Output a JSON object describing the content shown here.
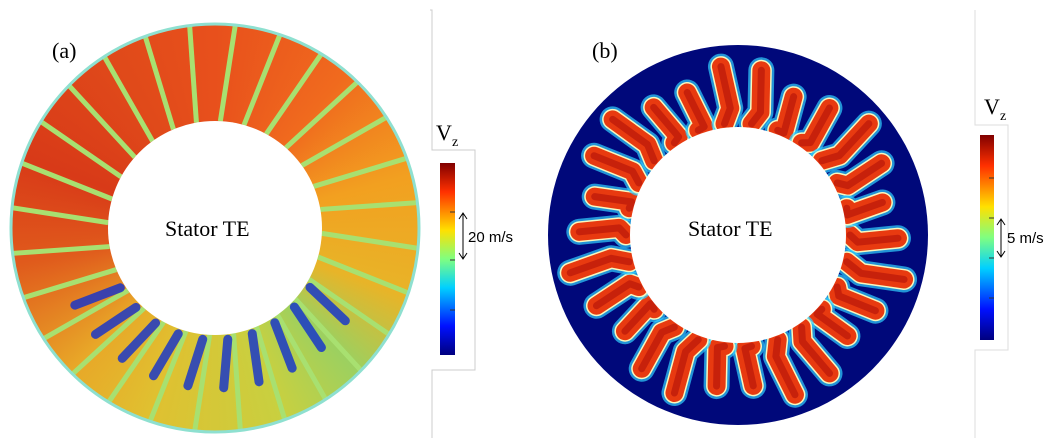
{
  "panel_a": {
    "label": "(a)",
    "center_label": "Stator TE",
    "colorbar": {
      "title": "V",
      "subscript": "z",
      "scale_label": "20 m/s"
    }
  },
  "panel_b": {
    "label": "(b)",
    "center_label": "Stator TE",
    "colorbar": {
      "title": "V",
      "subscript": "z",
      "scale_label": "5 m/s"
    }
  }
}
